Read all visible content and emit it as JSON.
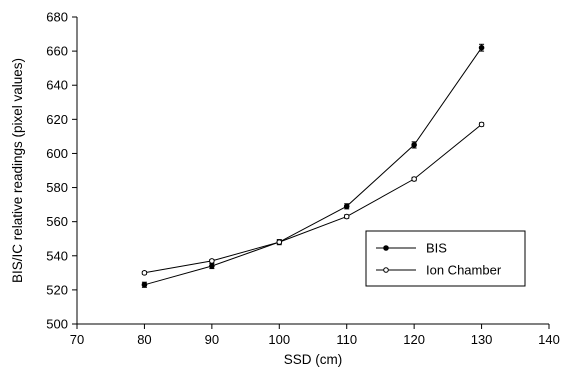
{
  "chart_data": {
    "type": "line",
    "title": "",
    "xlabel": "SSD (cm)",
    "ylabel": "BIS/IC relative readings (pixel values)",
    "xlim": [
      70,
      140
    ],
    "ylim": [
      500,
      680
    ],
    "x_ticks": [
      70,
      80,
      90,
      100,
      110,
      120,
      130,
      140
    ],
    "y_ticks": [
      500,
      520,
      540,
      560,
      580,
      600,
      620,
      640,
      660,
      680
    ],
    "x": [
      80,
      90,
      100,
      110,
      120,
      130
    ],
    "series": [
      {
        "name": "BIS",
        "marker": "filled-circle",
        "values": [
          523,
          534,
          548,
          569,
          605,
          662
        ],
        "errors": [
          1.5,
          1.5,
          1.5,
          1.5,
          1.8,
          2.0
        ]
      },
      {
        "name": "Ion Chamber",
        "marker": "open-circle",
        "values": [
          530,
          537,
          548,
          563,
          585,
          617
        ],
        "errors": [
          0.8,
          0.8,
          0.8,
          1.0,
          1.0,
          1.0
        ]
      }
    ],
    "grid": false,
    "legend_position": "lower-right",
    "colors": {
      "line": "#000000",
      "background": "#ffffff"
    }
  }
}
